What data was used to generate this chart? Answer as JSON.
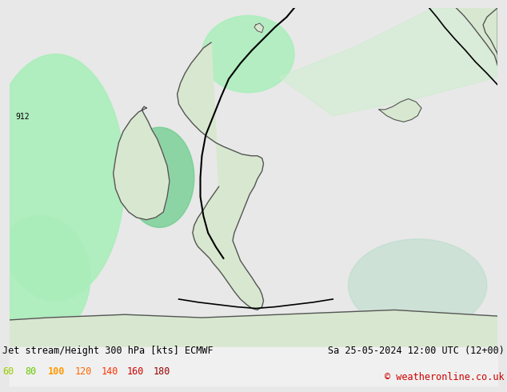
{
  "title_left": "Jet stream/Height 300 hPa [kts] ECMWF",
  "title_right": "Sa 25-05-2024 12:00 UTC (12+00)",
  "copyright": "© weatheronline.co.uk",
  "legend_values": [
    60,
    80,
    100,
    120,
    140,
    160,
    180
  ],
  "legend_colors": [
    "#99cc00",
    "#66cc00",
    "#ff9900",
    "#ff6600",
    "#ff3300",
    "#cc0000",
    "#990000"
  ],
  "bg_color": "#e8e8e8",
  "map_bg": "#e8e8e8",
  "fig_width": 6.34,
  "fig_height": 4.9,
  "dpi": 100,
  "land_color": "#e8e8e8",
  "sea_color": "#e8e8e8",
  "coast_color": "#555555",
  "coast_lw": 1.0,
  "light_green": "#aaeebb",
  "medium_green": "#66cc88",
  "light_green2": "#cceecc",
  "contour_label": "912",
  "bottom_bar_color": "#f0f0f0",
  "title_fontsize": 8.5,
  "legend_fontsize": 8.5
}
